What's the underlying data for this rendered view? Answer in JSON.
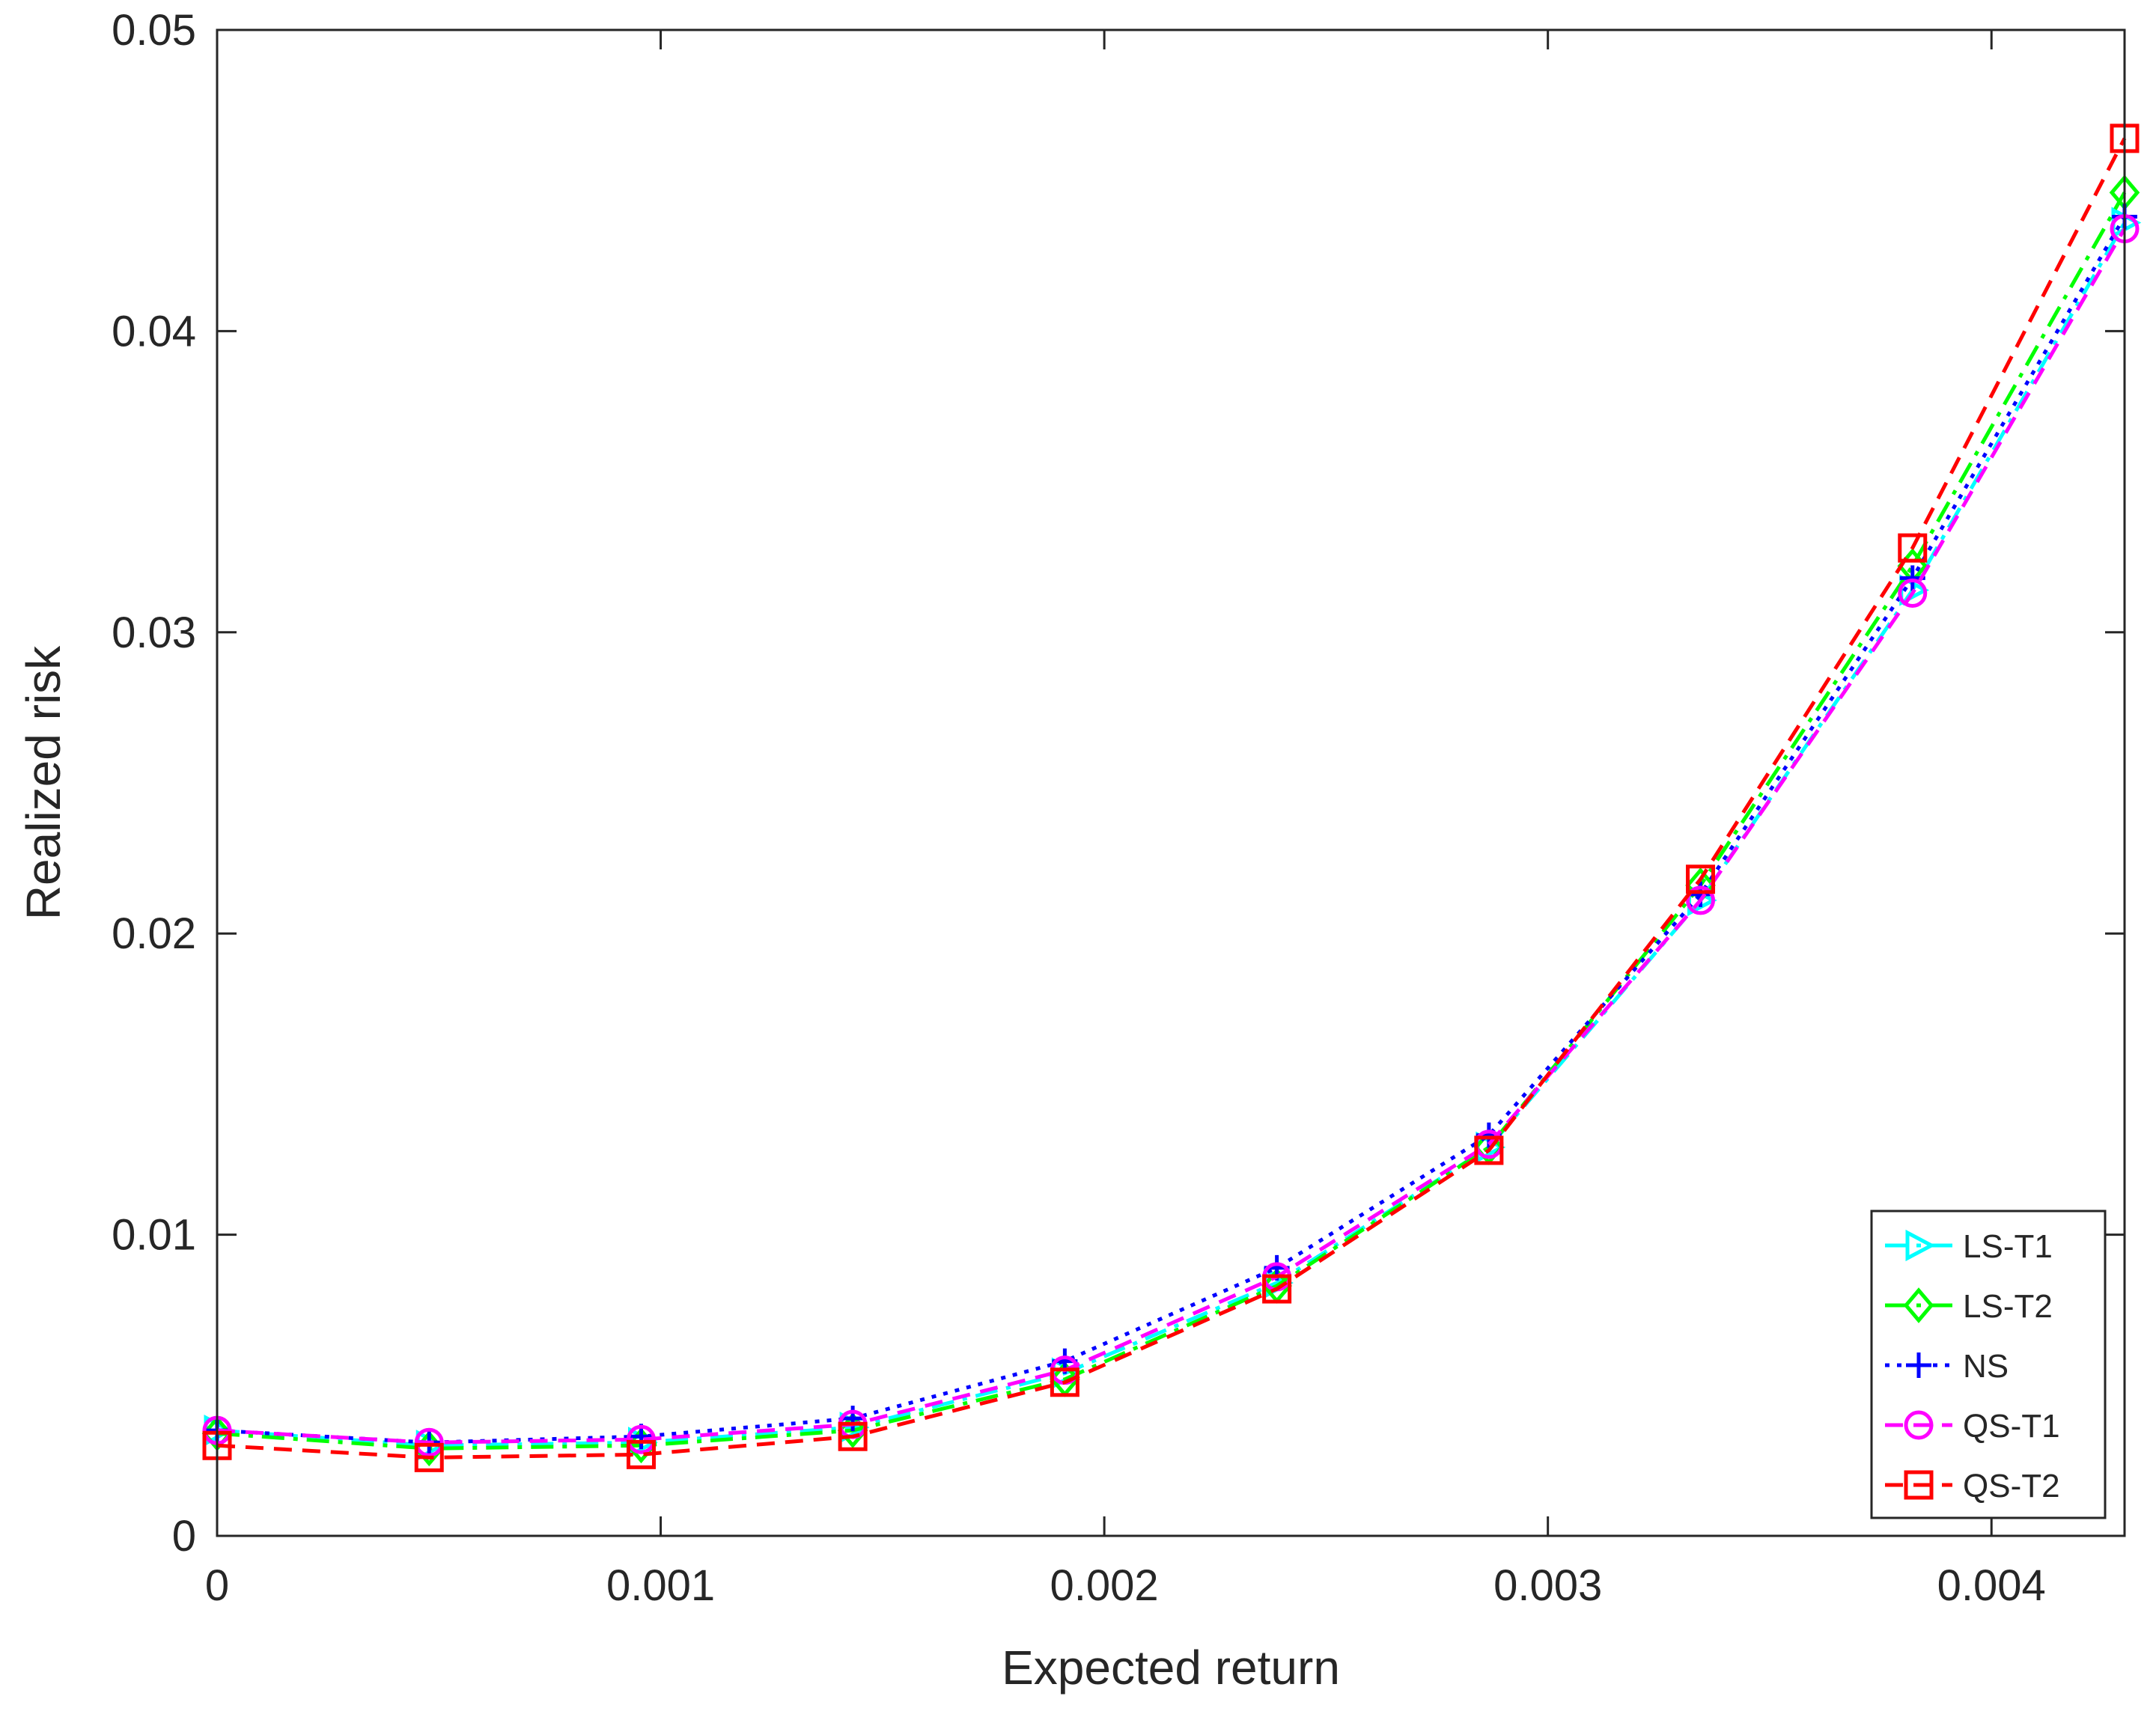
{
  "chart_data": {
    "type": "line",
    "title": "",
    "xlabel": "Expected return",
    "ylabel": "Realized risk",
    "xlim": [
      0,
      0.0043
    ],
    "ylim": [
      0,
      0.05
    ],
    "xticks": [
      0,
      0.001,
      0.002,
      0.003,
      0.004
    ],
    "xtick_labels": [
      "0",
      "0.001",
      "0.002",
      "0.003",
      "0.004"
    ],
    "yticks": [
      0,
      0.01,
      0.02,
      0.03,
      0.04,
      0.05
    ],
    "ytick_labels": [
      "0",
      "0.01",
      "0.02",
      "0.03",
      "0.04",
      "0.05"
    ],
    "grid": false,
    "box": true,
    "legend_position": "bottom-right",
    "x": [
      0,
      0.000478,
      0.000956,
      0.001433,
      0.001911,
      0.002389,
      0.002867,
      0.003344,
      0.003822,
      0.0043
    ],
    "series": [
      {
        "name": "LS-T1",
        "color": "#00ffff",
        "dash": "dash-dot",
        "marker": "triangle-right",
        "values": [
          0.0035,
          0.003,
          0.0031,
          0.0036,
          0.0054,
          0.0084,
          0.0129,
          0.0211,
          0.0314,
          0.0436
        ]
      },
      {
        "name": "LS-T2",
        "color": "#00ff00",
        "dash": "dash-dot",
        "marker": "diamond",
        "values": [
          0.0034,
          0.0029,
          0.003,
          0.0035,
          0.0052,
          0.0083,
          0.0129,
          0.0216,
          0.0322,
          0.0446
        ]
      },
      {
        "name": "NS",
        "color": "#0000ff",
        "dash": "dotted",
        "marker": "plus",
        "values": [
          0.0035,
          0.0031,
          0.0033,
          0.0039,
          0.0058,
          0.0089,
          0.0133,
          0.0213,
          0.0318,
          0.0438
        ]
      },
      {
        "name": "QS-T1",
        "color": "#ff00ff",
        "dash": "dashed",
        "marker": "circle",
        "values": [
          0.0035,
          0.0031,
          0.0032,
          0.0037,
          0.0055,
          0.0086,
          0.013,
          0.0211,
          0.0313,
          0.0434
        ]
      },
      {
        "name": "QS-T2",
        "color": "#ff0000",
        "dash": "dashed",
        "marker": "square",
        "values": [
          0.003,
          0.0026,
          0.0027,
          0.0033,
          0.0051,
          0.0082,
          0.0128,
          0.0218,
          0.0328,
          0.0464
        ]
      }
    ]
  }
}
